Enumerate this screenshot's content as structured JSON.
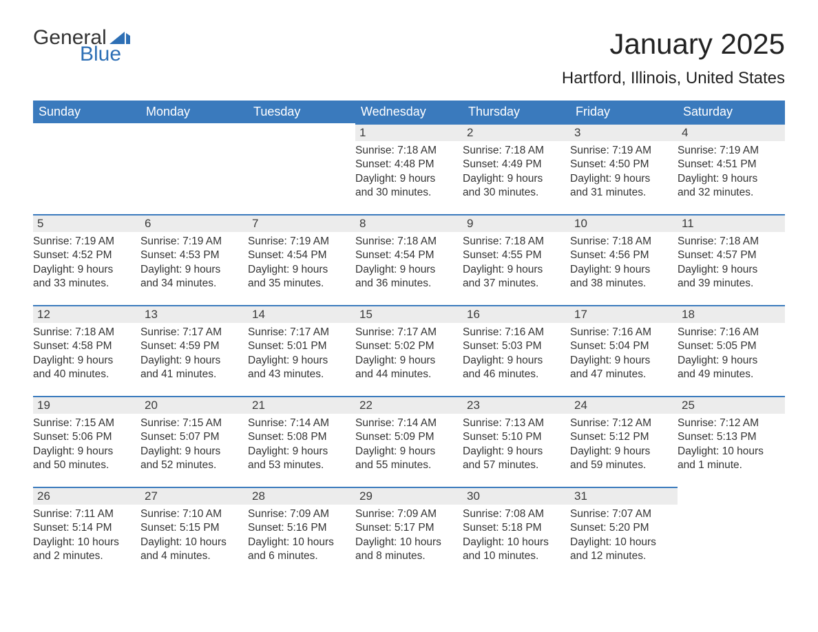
{
  "brand": {
    "general": "General",
    "blue": "Blue",
    "accent_color": "#2d6fb5"
  },
  "title": "January 2025",
  "location": "Hartford, Illinois, United States",
  "colors": {
    "header_bg": "#3a7abd",
    "header_text": "#ffffff",
    "row_border": "#3a7abd",
    "daynum_bg": "#ececec",
    "text": "#333333",
    "background": "#ffffff"
  },
  "day_headers": [
    "Sunday",
    "Monday",
    "Tuesday",
    "Wednesday",
    "Thursday",
    "Friday",
    "Saturday"
  ],
  "weeks": [
    [
      null,
      null,
      null,
      {
        "n": "1",
        "sr": "Sunrise: 7:18 AM",
        "ss": "Sunset: 4:48 PM",
        "d1": "Daylight: 9 hours",
        "d2": "and 30 minutes."
      },
      {
        "n": "2",
        "sr": "Sunrise: 7:18 AM",
        "ss": "Sunset: 4:49 PM",
        "d1": "Daylight: 9 hours",
        "d2": "and 30 minutes."
      },
      {
        "n": "3",
        "sr": "Sunrise: 7:19 AM",
        "ss": "Sunset: 4:50 PM",
        "d1": "Daylight: 9 hours",
        "d2": "and 31 minutes."
      },
      {
        "n": "4",
        "sr": "Sunrise: 7:19 AM",
        "ss": "Sunset: 4:51 PM",
        "d1": "Daylight: 9 hours",
        "d2": "and 32 minutes."
      }
    ],
    [
      {
        "n": "5",
        "sr": "Sunrise: 7:19 AM",
        "ss": "Sunset: 4:52 PM",
        "d1": "Daylight: 9 hours",
        "d2": "and 33 minutes."
      },
      {
        "n": "6",
        "sr": "Sunrise: 7:19 AM",
        "ss": "Sunset: 4:53 PM",
        "d1": "Daylight: 9 hours",
        "d2": "and 34 minutes."
      },
      {
        "n": "7",
        "sr": "Sunrise: 7:19 AM",
        "ss": "Sunset: 4:54 PM",
        "d1": "Daylight: 9 hours",
        "d2": "and 35 minutes."
      },
      {
        "n": "8",
        "sr": "Sunrise: 7:18 AM",
        "ss": "Sunset: 4:54 PM",
        "d1": "Daylight: 9 hours",
        "d2": "and 36 minutes."
      },
      {
        "n": "9",
        "sr": "Sunrise: 7:18 AM",
        "ss": "Sunset: 4:55 PM",
        "d1": "Daylight: 9 hours",
        "d2": "and 37 minutes."
      },
      {
        "n": "10",
        "sr": "Sunrise: 7:18 AM",
        "ss": "Sunset: 4:56 PM",
        "d1": "Daylight: 9 hours",
        "d2": "and 38 minutes."
      },
      {
        "n": "11",
        "sr": "Sunrise: 7:18 AM",
        "ss": "Sunset: 4:57 PM",
        "d1": "Daylight: 9 hours",
        "d2": "and 39 minutes."
      }
    ],
    [
      {
        "n": "12",
        "sr": "Sunrise: 7:18 AM",
        "ss": "Sunset: 4:58 PM",
        "d1": "Daylight: 9 hours",
        "d2": "and 40 minutes."
      },
      {
        "n": "13",
        "sr": "Sunrise: 7:17 AM",
        "ss": "Sunset: 4:59 PM",
        "d1": "Daylight: 9 hours",
        "d2": "and 41 minutes."
      },
      {
        "n": "14",
        "sr": "Sunrise: 7:17 AM",
        "ss": "Sunset: 5:01 PM",
        "d1": "Daylight: 9 hours",
        "d2": "and 43 minutes."
      },
      {
        "n": "15",
        "sr": "Sunrise: 7:17 AM",
        "ss": "Sunset: 5:02 PM",
        "d1": "Daylight: 9 hours",
        "d2": "and 44 minutes."
      },
      {
        "n": "16",
        "sr": "Sunrise: 7:16 AM",
        "ss": "Sunset: 5:03 PM",
        "d1": "Daylight: 9 hours",
        "d2": "and 46 minutes."
      },
      {
        "n": "17",
        "sr": "Sunrise: 7:16 AM",
        "ss": "Sunset: 5:04 PM",
        "d1": "Daylight: 9 hours",
        "d2": "and 47 minutes."
      },
      {
        "n": "18",
        "sr": "Sunrise: 7:16 AM",
        "ss": "Sunset: 5:05 PM",
        "d1": "Daylight: 9 hours",
        "d2": "and 49 minutes."
      }
    ],
    [
      {
        "n": "19",
        "sr": "Sunrise: 7:15 AM",
        "ss": "Sunset: 5:06 PM",
        "d1": "Daylight: 9 hours",
        "d2": "and 50 minutes."
      },
      {
        "n": "20",
        "sr": "Sunrise: 7:15 AM",
        "ss": "Sunset: 5:07 PM",
        "d1": "Daylight: 9 hours",
        "d2": "and 52 minutes."
      },
      {
        "n": "21",
        "sr": "Sunrise: 7:14 AM",
        "ss": "Sunset: 5:08 PM",
        "d1": "Daylight: 9 hours",
        "d2": "and 53 minutes."
      },
      {
        "n": "22",
        "sr": "Sunrise: 7:14 AM",
        "ss": "Sunset: 5:09 PM",
        "d1": "Daylight: 9 hours",
        "d2": "and 55 minutes."
      },
      {
        "n": "23",
        "sr": "Sunrise: 7:13 AM",
        "ss": "Sunset: 5:10 PM",
        "d1": "Daylight: 9 hours",
        "d2": "and 57 minutes."
      },
      {
        "n": "24",
        "sr": "Sunrise: 7:12 AM",
        "ss": "Sunset: 5:12 PM",
        "d1": "Daylight: 9 hours",
        "d2": "and 59 minutes."
      },
      {
        "n": "25",
        "sr": "Sunrise: 7:12 AM",
        "ss": "Sunset: 5:13 PM",
        "d1": "Daylight: 10 hours",
        "d2": "and 1 minute."
      }
    ],
    [
      {
        "n": "26",
        "sr": "Sunrise: 7:11 AM",
        "ss": "Sunset: 5:14 PM",
        "d1": "Daylight: 10 hours",
        "d2": "and 2 minutes."
      },
      {
        "n": "27",
        "sr": "Sunrise: 7:10 AM",
        "ss": "Sunset: 5:15 PM",
        "d1": "Daylight: 10 hours",
        "d2": "and 4 minutes."
      },
      {
        "n": "28",
        "sr": "Sunrise: 7:09 AM",
        "ss": "Sunset: 5:16 PM",
        "d1": "Daylight: 10 hours",
        "d2": "and 6 minutes."
      },
      {
        "n": "29",
        "sr": "Sunrise: 7:09 AM",
        "ss": "Sunset: 5:17 PM",
        "d1": "Daylight: 10 hours",
        "d2": "and 8 minutes."
      },
      {
        "n": "30",
        "sr": "Sunrise: 7:08 AM",
        "ss": "Sunset: 5:18 PM",
        "d1": "Daylight: 10 hours",
        "d2": "and 10 minutes."
      },
      {
        "n": "31",
        "sr": "Sunrise: 7:07 AM",
        "ss": "Sunset: 5:20 PM",
        "d1": "Daylight: 10 hours",
        "d2": "and 12 minutes."
      },
      null
    ]
  ]
}
